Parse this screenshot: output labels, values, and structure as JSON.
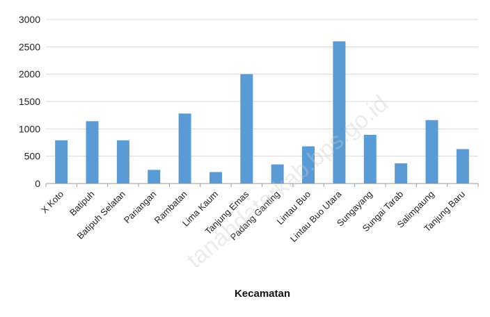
{
  "chart_data": {
    "type": "bar",
    "categories": [
      "X Koto",
      "Batipuh",
      "Batipuh Selatan",
      "Pariangan",
      "Rambatan",
      "Lima Kaum",
      "Tanjung Emas",
      "Padang Ganting",
      "Lintau Buo",
      "Lintau Buo Utara",
      "Sungayang",
      "Sungai Tarab",
      "Salimpaung",
      "Tanjung Baru"
    ],
    "values": [
      790,
      1140,
      790,
      250,
      1280,
      210,
      2000,
      350,
      680,
      2600,
      890,
      370,
      1160,
      630
    ],
    "xlabel": "Kecamatan",
    "ylabel": "",
    "ylim": [
      0,
      3000
    ],
    "yticks": [
      0,
      500,
      1000,
      1500,
      2000,
      2500,
      3000
    ],
    "grid": true,
    "bar_color": "#5b9bd5"
  },
  "watermark": "tanahdatarkab.bps.go.id"
}
